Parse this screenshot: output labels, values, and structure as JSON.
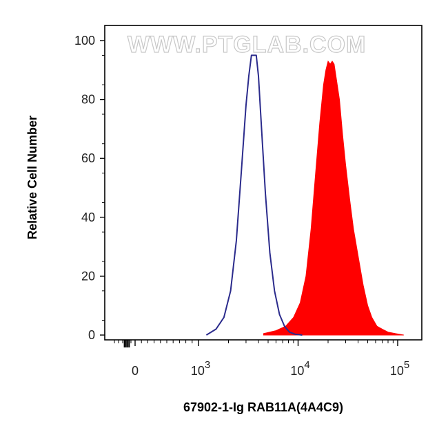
{
  "chart_data": {
    "type": "area",
    "title": "",
    "watermark": "WWW.PTGLAB.COM",
    "xlabel": "67902-1-Ig RAB11A(4A4C9)",
    "ylabel": "Relative Cell Number",
    "xscale": "biexponential",
    "xlim": [
      -1000,
      120000
    ],
    "ylim": [
      0,
      100
    ],
    "grid": false,
    "y_ticks": [
      {
        "value": 0,
        "label": "0"
      },
      {
        "value": 20,
        "label": "20"
      },
      {
        "value": 40,
        "label": "40"
      },
      {
        "value": 60,
        "label": "60"
      },
      {
        "value": 80,
        "label": "80"
      },
      {
        "value": 100,
        "label": "100"
      }
    ],
    "x_ticks": [
      {
        "value": 0,
        "base": "0",
        "exp": ""
      },
      {
        "value": 1000,
        "base": "10",
        "exp": "3"
      },
      {
        "value": 10000,
        "base": "10",
        "exp": "4"
      },
      {
        "value": 100000,
        "base": "10",
        "exp": "5"
      }
    ],
    "series": [
      {
        "style": "outline",
        "color": "#2b2b8c",
        "x": [
          1200,
          1500,
          1800,
          2100,
          2400,
          2700,
          3000,
          3200,
          3400,
          3600,
          3800,
          4000,
          4300,
          4700,
          5200,
          5800,
          6500,
          7300,
          8200,
          9300,
          11000
        ],
        "y": [
          0,
          2,
          6,
          15,
          32,
          56,
          78,
          88,
          95,
          95,
          95,
          88,
          70,
          48,
          28,
          15,
          7,
          3,
          1,
          0.3,
          0
        ]
      },
      {
        "style": "filled",
        "color": "#ff0000",
        "x": [
          4500,
          6000,
          7500,
          9000,
          10500,
          12000,
          13500,
          15000,
          16500,
          18000,
          19000,
          20000,
          21000,
          22000,
          23000,
          24000,
          26000,
          28000,
          30000,
          33000,
          36000,
          40000,
          45000,
          50000,
          55000,
          62000,
          70000,
          80000,
          95000,
          115000
        ],
        "y": [
          0.5,
          1.5,
          3,
          6,
          11,
          20,
          36,
          55,
          72,
          85,
          90,
          93,
          92,
          93,
          92,
          88,
          80,
          68,
          58,
          46,
          36,
          27,
          17,
          10,
          6,
          3,
          2,
          1,
          0.5,
          0
        ]
      }
    ]
  }
}
